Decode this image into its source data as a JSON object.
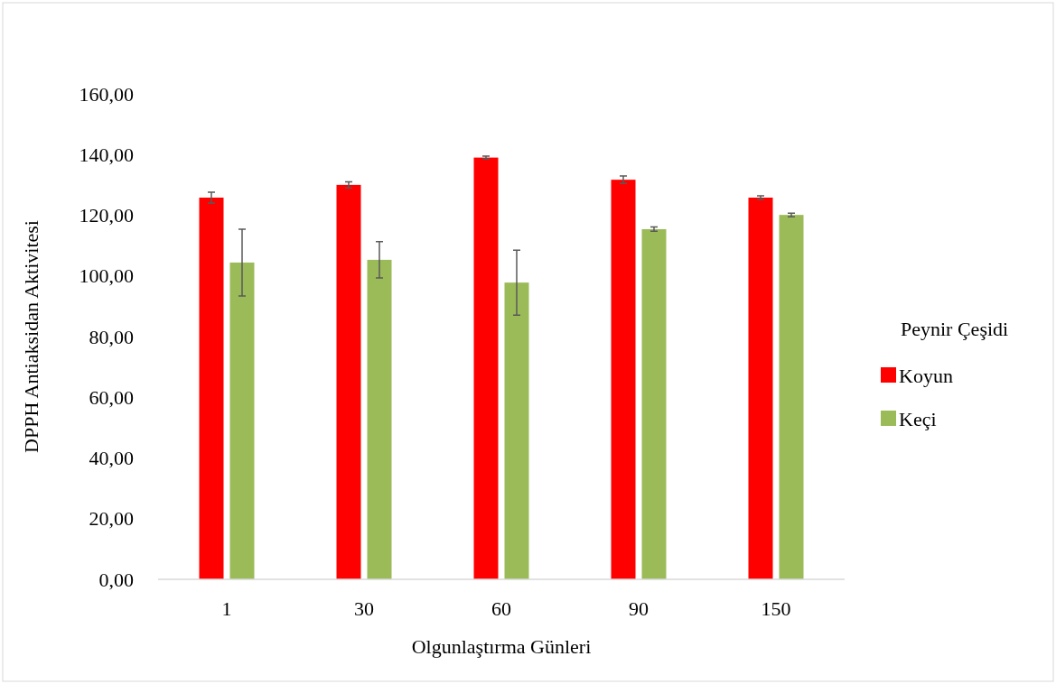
{
  "chart_data": {
    "type": "bar",
    "xlabel": "Olgunlaştırma Günleri",
    "ylabel": "DPPH Antiaksidan Aktivitesi",
    "legend_title": "Peynir Çeşidi",
    "legend": "right",
    "categories": [
      "1",
      "30",
      "60",
      "90",
      "150"
    ],
    "ylim": [
      0,
      160
    ],
    "yticks": [
      {
        "value": 0,
        "label": "0,00"
      },
      {
        "value": 20,
        "label": "20,00"
      },
      {
        "value": 40,
        "label": "40,00"
      },
      {
        "value": 60,
        "label": "60,00"
      },
      {
        "value": 80,
        "label": "80,00"
      },
      {
        "value": 100,
        "label": "100,00"
      },
      {
        "value": 120,
        "label": "120,00"
      },
      {
        "value": 140,
        "label": "140,00"
      },
      {
        "value": 160,
        "label": "160,00"
      }
    ],
    "series": [
      {
        "name": "Koyun",
        "color": "#ff0000",
        "values": [
          125.8,
          130,
          139,
          131.7,
          125.8
        ],
        "errors": [
          1.8,
          1,
          0.5,
          1.2,
          0.6
        ]
      },
      {
        "name": "Keçi",
        "color": "#9bbb59",
        "values": [
          104.4,
          105.3,
          97.8,
          115.4,
          120.1
        ],
        "errors": [
          11,
          6,
          10.7,
          0.7,
          0.6
        ]
      }
    ]
  }
}
